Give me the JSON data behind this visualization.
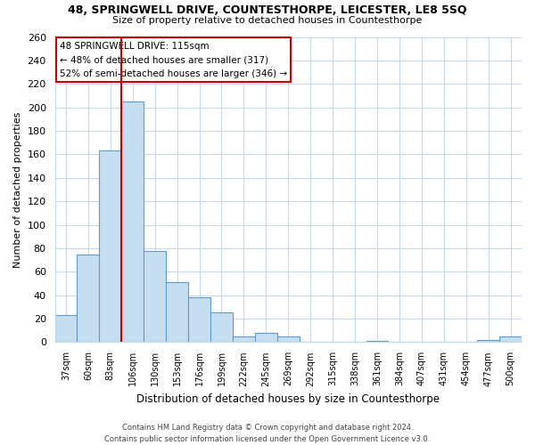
{
  "title": "48, SPRINGWELL DRIVE, COUNTESTHORPE, LEICESTER, LE8 5SQ",
  "subtitle": "Size of property relative to detached houses in Countesthorpe",
  "xlabel": "Distribution of detached houses by size in Countesthorpe",
  "ylabel": "Number of detached properties",
  "bin_labels": [
    "37sqm",
    "60sqm",
    "83sqm",
    "106sqm",
    "130sqm",
    "153sqm",
    "176sqm",
    "199sqm",
    "222sqm",
    "245sqm",
    "269sqm",
    "292sqm",
    "315sqm",
    "338sqm",
    "361sqm",
    "384sqm",
    "407sqm",
    "431sqm",
    "454sqm",
    "477sqm",
    "500sqm"
  ],
  "bar_heights": [
    23,
    75,
    163,
    205,
    78,
    51,
    38,
    25,
    5,
    8,
    5,
    0,
    0,
    0,
    1,
    0,
    0,
    0,
    0,
    2,
    5
  ],
  "bar_color": "#c6dff0",
  "bar_edge_color": "#5b9bd5",
  "vline_color": "#cc0000",
  "annotation_title": "48 SPRINGWELL DRIVE: 115sqm",
  "annotation_line1": "← 48% of detached houses are smaller (317)",
  "annotation_line2": "52% of semi-detached houses are larger (346) →",
  "annotation_box_color": "#ffffff",
  "annotation_box_edge": "#cc0000",
  "ylim": [
    0,
    260
  ],
  "yticks": [
    0,
    20,
    40,
    60,
    80,
    100,
    120,
    140,
    160,
    180,
    200,
    220,
    240,
    260
  ],
  "footer1": "Contains HM Land Registry data © Crown copyright and database right 2024.",
  "footer2": "Contains public sector information licensed under the Open Government Licence v3.0.",
  "background_color": "#ffffff",
  "grid_color": "#c8d8e8"
}
